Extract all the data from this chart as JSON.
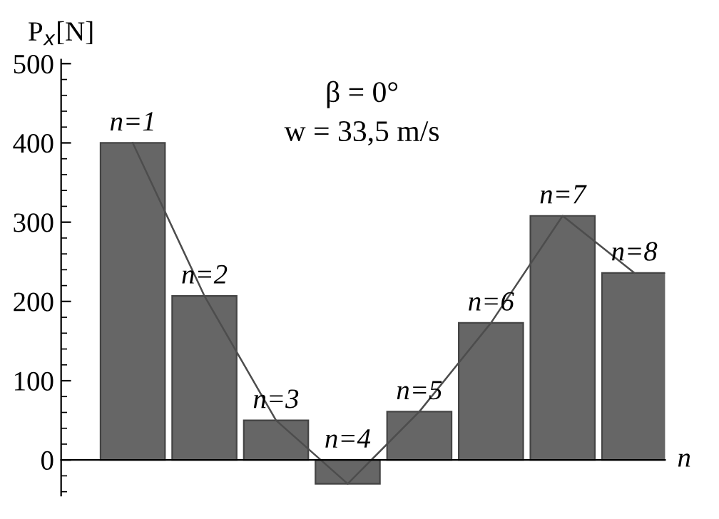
{
  "chart_data": {
    "type": "bar",
    "ylabel": "P$_{x}$[N]",
    "xlabel": "n",
    "categories": [
      "n=1",
      "n=2",
      "n=3",
      "n=4",
      "n=5",
      "n=6",
      "n=7",
      "n=8"
    ],
    "series": [
      {
        "color": "#666666",
        "values": [
          400,
          207,
          50,
          -30,
          61,
          173,
          308,
          236
        ]
      },
      {
        "type": "line",
        "color": "#4d4d4d",
        "values": [
          400,
          207,
          50,
          -30,
          61,
          173,
          308,
          236
        ]
      }
    ],
    "ylim": [
      -45,
      505
    ],
    "yticks": [
      0,
      100,
      200,
      300,
      400,
      500
    ],
    "annotations": [
      "β = 0°",
      "w = 33,5 m/s"
    ],
    "tick_labels": "y",
    "legend": false,
    "marker": "none",
    "line_style": "solid"
  }
}
